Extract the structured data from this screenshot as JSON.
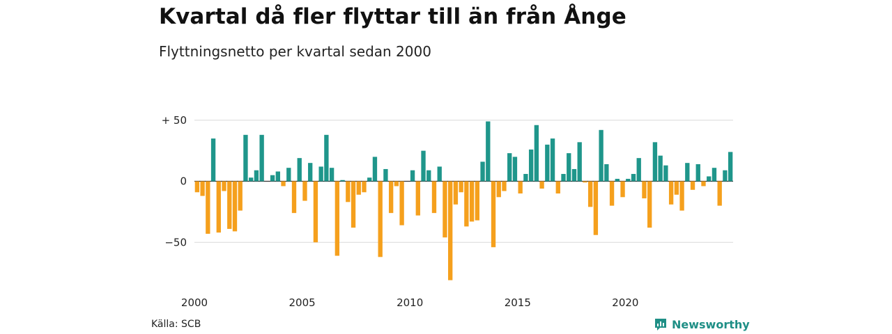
{
  "title": "Kvartal då fler flyttar till än från Ånge",
  "subtitle": "Flyttningsnetto per kvartal sedan 2000",
  "source": "Källa: SCB",
  "brand": "Newsworthy",
  "colors": {
    "positive": "#1f968b",
    "negative": "#f5a01d",
    "brand": "#1f8f86"
  },
  "chart_data": {
    "type": "bar",
    "title": "Kvartal då fler flyttar till än från Ånge",
    "subtitle": "Flyttningsnetto per kvartal sedan 2000",
    "xlabel": "",
    "ylabel": "",
    "ylim": [
      -85,
      55
    ],
    "yticks": [
      {
        "value": 50,
        "label": "+ 50"
      },
      {
        "value": 0,
        "label": "0"
      },
      {
        "value": -50,
        "label": "−50"
      }
    ],
    "xticks": [
      {
        "index": 0,
        "label": "2000"
      },
      {
        "index": 20,
        "label": "2005"
      },
      {
        "index": 40,
        "label": "2010"
      },
      {
        "index": 60,
        "label": "2015"
      },
      {
        "index": 80,
        "label": "2020"
      }
    ],
    "grid": true,
    "start_year": 2000,
    "values": [
      -9,
      -12,
      -43,
      35,
      -42,
      -8,
      -39,
      -41,
      -24,
      38,
      3,
      9,
      38,
      0,
      5,
      8,
      -4,
      11,
      -26,
      19,
      -16,
      15,
      -50,
      12,
      38,
      11,
      -61,
      1,
      -17,
      -38,
      -11,
      -9,
      3,
      20,
      -62,
      10,
      -26,
      -4,
      -36,
      0,
      9,
      -28,
      25,
      9,
      -26,
      12,
      -46,
      -81,
      -19,
      -9,
      -37,
      -33,
      -32,
      16,
      49,
      -54,
      -13,
      -8,
      23,
      20,
      -10,
      6,
      26,
      46,
      -6,
      30,
      35,
      -10,
      6,
      23,
      10,
      32,
      -1,
      -21,
      -44,
      42,
      14,
      -20,
      2,
      -13,
      2,
      6,
      19,
      -14,
      -38,
      32,
      21,
      13,
      -19,
      -11,
      -24,
      15,
      -7,
      14,
      -4,
      4,
      11,
      -20,
      9,
      24
    ]
  }
}
